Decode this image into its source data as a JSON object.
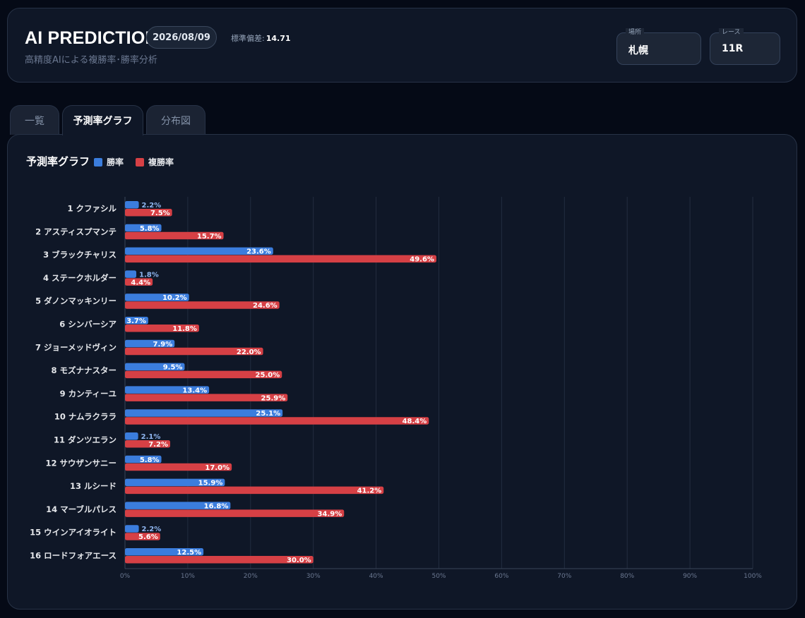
{
  "header": {
    "title": "AI PREDICTION",
    "date": "2026/08/09",
    "stddev_label": "標準偏差:",
    "stddev_value": "14.71",
    "subtitle": "高精度AIによる複勝率･勝率分析",
    "venue": {
      "label": "場所",
      "value": "札幌"
    },
    "race": {
      "label": "レース",
      "value": "11R"
    }
  },
  "tabs": [
    {
      "label": "一覧",
      "active": false
    },
    {
      "label": "予測率グラフ",
      "active": true
    },
    {
      "label": "分布図",
      "active": false
    }
  ],
  "colors": {
    "win": "#3b7ddd",
    "place": "#d64045",
    "accent_bg": "#0f1727"
  },
  "chart_data": {
    "type": "bar",
    "orientation": "horizontal",
    "title": "予測率グラフ",
    "categories": [
      "1 クファシル",
      "2 アスティスプマンテ",
      "3 ブラックチャリス",
      "4 ステークホルダー",
      "5 ダノンマッキンリー",
      "6 シンバーシア",
      "7 ジョーメッドヴィン",
      "8 モズナナスター",
      "9 カンティーユ",
      "10 ナムラクララ",
      "11 ダンツエラン",
      "12 サウザンサニー",
      "13 ルシード",
      "14 マーブルパレス",
      "15 ウインアイオライト",
      "16 ロードフォアエース"
    ],
    "series": [
      {
        "name": "勝率",
        "values": [
          2.2,
          5.8,
          23.6,
          1.8,
          10.2,
          3.7,
          7.9,
          9.5,
          13.4,
          25.1,
          2.1,
          5.8,
          15.9,
          16.8,
          2.2,
          12.5
        ]
      },
      {
        "name": "複勝率",
        "values": [
          7.5,
          15.7,
          49.6,
          4.4,
          24.6,
          11.8,
          22.0,
          25.0,
          25.9,
          48.4,
          7.2,
          17.0,
          41.2,
          34.9,
          5.6,
          30.0
        ]
      }
    ],
    "xlim": [
      0,
      100
    ],
    "xticks": [
      "0%",
      "10%",
      "20%",
      "30%",
      "40%",
      "50%",
      "60%",
      "70%",
      "80%",
      "90%",
      "100%"
    ],
    "grid": true,
    "legend": "top-left"
  }
}
